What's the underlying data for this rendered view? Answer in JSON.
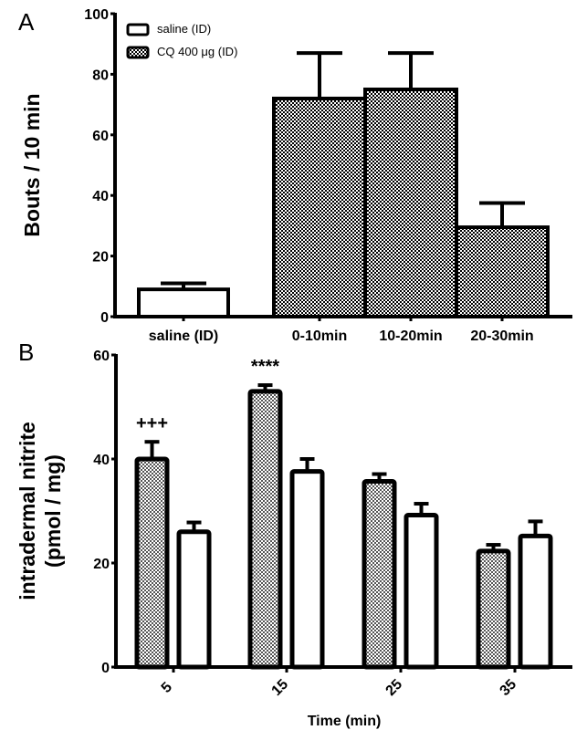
{
  "chart_data": [
    {
      "panel": "A",
      "type": "bar",
      "title": "",
      "xlabel": "",
      "ylabel": "Bouts / 10 min",
      "ylim": [
        0,
        100
      ],
      "yticks": [
        0,
        20,
        40,
        60,
        80,
        100
      ],
      "grid": false,
      "legend": {
        "placement": "top-left",
        "entries": [
          {
            "label": "saline (ID)",
            "pattern": "white"
          },
          {
            "label": "CQ 400 μg (ID)",
            "pattern": "checker"
          }
        ]
      },
      "categories": [
        "saline (ID)",
        "0-10min",
        "10-20min",
        "20-30min"
      ],
      "bars": [
        {
          "category": "saline (ID)",
          "series": "saline (ID)",
          "value": 9,
          "error": 2
        },
        {
          "category": "0-10min",
          "series": "CQ 400 μg (ID)",
          "value": 72,
          "error": 15
        },
        {
          "category": "10-20min",
          "series": "CQ 400 μg (ID)",
          "value": 75,
          "error": 12
        },
        {
          "category": "20-30min",
          "series": "CQ 400 μg (ID)",
          "value": 29.5,
          "error": 8
        }
      ]
    },
    {
      "panel": "B",
      "type": "bar",
      "title": "",
      "xlabel": "Time (min)",
      "ylabel": "intradermal nitrite (pmol / mg)",
      "ylabel_lines": [
        "intradermal nitrite",
        "(pmol / mg)"
      ],
      "ylim": [
        0,
        60
      ],
      "yticks": [
        0,
        20,
        40,
        60
      ],
      "grid": false,
      "categories": [
        "5",
        "15",
        "25",
        "35"
      ],
      "series": [
        {
          "name": "CQ 400 μg (ID)",
          "pattern": "checker",
          "values": [
            40,
            53,
            35.7,
            22.3
          ],
          "errors": [
            3.3,
            1.2,
            1.4,
            1.2
          ]
        },
        {
          "name": "saline (ID)",
          "pattern": "white",
          "values": [
            26,
            37.6,
            29.2,
            25.2
          ],
          "errors": [
            1.8,
            2.4,
            2.2,
            2.8
          ]
        }
      ],
      "annotations": [
        {
          "category": "5",
          "series": "CQ 400 μg (ID)",
          "text": "+++"
        },
        {
          "category": "15",
          "series": "CQ 400 μg (ID)",
          "text": "****"
        }
      ]
    }
  ]
}
